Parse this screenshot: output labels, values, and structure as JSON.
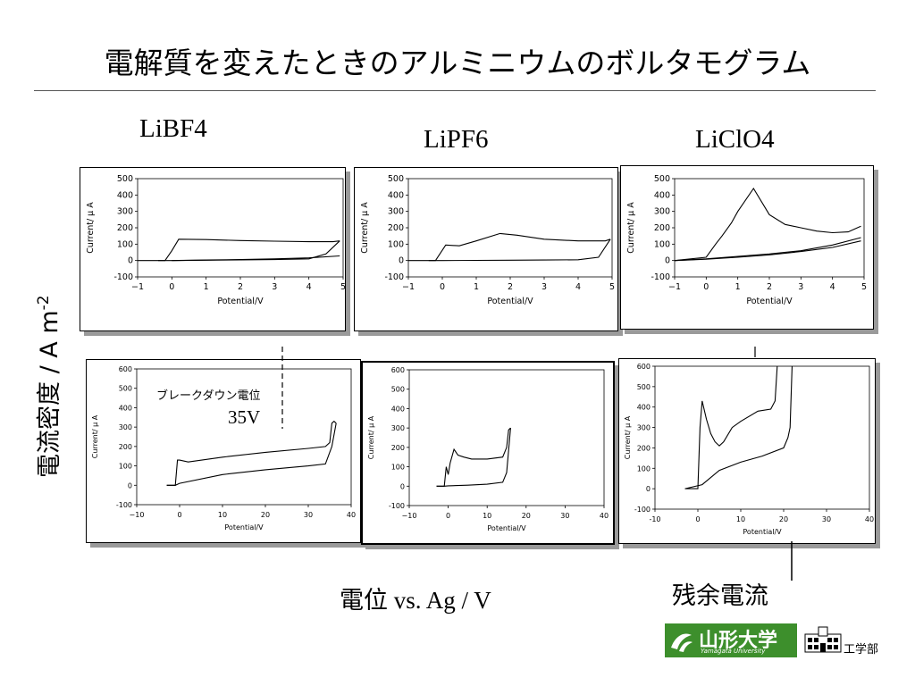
{
  "title": "電解質を変えたときのアルミニウムのボルタモグラム",
  "column_headers": [
    "LiBF4",
    "LiPF6",
    "LiClO4"
  ],
  "y_axis_label_main": "電流密度 / A m",
  "y_axis_label_sup": "-2",
  "x_axis_label_main_jp": "電位",
  "x_axis_label_main_en": " vs. Ag / V",
  "residual_label": "残余電流",
  "breakdown_label": "ブレークダウン電位",
  "breakdown_value": "35V",
  "logo_text": "山形大学",
  "logo_subtext": "Yamagata University",
  "dept_text": "工学部",
  "colors": {
    "line": "#000000",
    "shadow": "#9a9a9a",
    "logo_green": "#3d8f2c"
  },
  "chart_data": [
    {
      "type": "line",
      "panel": "LiBF4 0-5V",
      "xlabel": "Potential/V",
      "ylabel": "Current/ μ A",
      "xlim": [
        -1,
        5
      ],
      "ylim": [
        -100,
        500
      ],
      "xticks": [
        -1,
        0,
        1,
        2,
        3,
        4,
        5
      ],
      "xtick_labels": [
        "−1",
        "0",
        "1",
        "2",
        "3",
        "4",
        "5"
      ],
      "yticks": [
        -100,
        0,
        100,
        200,
        300,
        400,
        500
      ],
      "series": [
        {
          "x": [
            -1,
            -0.2,
            0,
            0.2,
            1,
            2,
            3,
            4,
            4.7,
            4.9
          ],
          "y": [
            0,
            0,
            60,
            130,
            128,
            122,
            118,
            115,
            115,
            120
          ]
        },
        {
          "x": [
            4.9,
            4.5,
            4.0,
            3.0,
            2.0,
            1.0,
            0,
            -0.4
          ],
          "y": [
            120,
            40,
            10,
            6,
            4,
            2,
            0,
            0
          ]
        },
        {
          "x": [
            0,
            1,
            2,
            3,
            4,
            4.9
          ],
          "y": [
            0,
            3,
            6,
            10,
            16,
            28
          ]
        }
      ]
    },
    {
      "type": "line",
      "panel": "LiPF6 0-5V",
      "xlabel": "Potential/V",
      "ylabel": "Current/ μ A",
      "xlim": [
        -1,
        5
      ],
      "ylim": [
        -100,
        500
      ],
      "xticks": [
        -1,
        0,
        1,
        2,
        3,
        4,
        5
      ],
      "xtick_labels": [
        "−1",
        "0",
        "1",
        "2",
        "3",
        "4",
        "5"
      ],
      "yticks": [
        -100,
        0,
        100,
        200,
        300,
        400,
        500
      ],
      "series": [
        {
          "x": [
            -1,
            -0.2,
            0.1,
            0.5,
            1.0,
            1.7,
            2.2,
            3.0,
            4.0,
            4.8,
            4.95
          ],
          "y": [
            0,
            0,
            95,
            90,
            120,
            165,
            155,
            130,
            120,
            120,
            130
          ]
        },
        {
          "x": [
            4.95,
            4.6,
            4.0,
            3.0,
            2.0,
            1.0,
            0,
            -0.4
          ],
          "y": [
            130,
            20,
            5,
            3,
            2,
            1,
            0,
            0
          ]
        }
      ]
    },
    {
      "type": "line",
      "panel": "LiClO4 0-5V",
      "xlabel": "Potential/V",
      "ylabel": "Current/ μ A",
      "xlim": [
        -1,
        5
      ],
      "ylim": [
        -100,
        500
      ],
      "xticks": [
        -1,
        0,
        1,
        2,
        3,
        4,
        5
      ],
      "xtick_labels": [
        "−1",
        "0",
        "1",
        "2",
        "3",
        "4",
        "5"
      ],
      "yticks": [
        -100,
        0,
        100,
        200,
        300,
        400,
        500
      ],
      "series": [
        {
          "x": [
            -1,
            0,
            0.3,
            0.5,
            0.8,
            1.0,
            1.5,
            2.0,
            2.5,
            3.0,
            3.5,
            4.0,
            4.5,
            4.9
          ],
          "y": [
            0,
            20,
            100,
            150,
            230,
            300,
            440,
            280,
            220,
            200,
            180,
            170,
            175,
            210
          ]
        },
        {
          "x": [
            4.9,
            4.0,
            3.0,
            2.0,
            1.0,
            0,
            -1
          ],
          "y": [
            140,
            95,
            60,
            40,
            25,
            10,
            0
          ]
        },
        {
          "x": [
            -1,
            0,
            1,
            2,
            3,
            4,
            4.9
          ],
          "y": [
            0,
            8,
            20,
            35,
            55,
            80,
            120
          ]
        }
      ]
    },
    {
      "type": "line",
      "panel": "LiBF4 0-40V",
      "xlabel": "Potential/V",
      "ylabel": "Current/ μ A",
      "xlim": [
        -10,
        40
      ],
      "ylim": [
        -100,
        600
      ],
      "xticks": [
        -10,
        0,
        10,
        20,
        30,
        40
      ],
      "xtick_labels": [
        "−10",
        "0",
        "10",
        "20",
        "30",
        "40"
      ],
      "yticks": [
        -100,
        0,
        100,
        200,
        300,
        400,
        500,
        600
      ],
      "series": [
        {
          "x": [
            -3,
            -1,
            -0.5,
            0,
            2,
            10,
            20,
            30,
            34,
            35,
            35.5,
            36,
            36.5
          ],
          "y": [
            0,
            0,
            130,
            130,
            120,
            145,
            170,
            190,
            200,
            220,
            320,
            330,
            320
          ]
        },
        {
          "x": [
            36.5,
            35.5,
            34,
            30,
            20,
            10,
            0,
            -1,
            -3
          ],
          "y": [
            320,
            200,
            110,
            100,
            80,
            55,
            10,
            0,
            0
          ]
        }
      ]
    },
    {
      "type": "line",
      "panel": "LiPF6 0-40V",
      "xlabel": "Potential/V",
      "ylabel": "Current/ μ A",
      "xlim": [
        -10,
        40
      ],
      "ylim": [
        -100,
        600
      ],
      "xticks": [
        -10,
        0,
        10,
        20,
        30,
        40
      ],
      "xtick_labels": [
        "−10",
        "0",
        "10",
        "20",
        "30",
        "40"
      ],
      "yticks": [
        -100,
        0,
        100,
        200,
        300,
        400,
        500,
        600
      ],
      "series": [
        {
          "x": [
            -3,
            -1,
            -0.5,
            0,
            0.5,
            1.5,
            2.5,
            4,
            6,
            10,
            14,
            15,
            15.5,
            16
          ],
          "y": [
            0,
            0,
            100,
            60,
            120,
            190,
            160,
            150,
            140,
            140,
            150,
            200,
            290,
            300
          ]
        },
        {
          "x": [
            16,
            15,
            14,
            10,
            5,
            0,
            -1,
            -3
          ],
          "y": [
            300,
            70,
            20,
            10,
            5,
            2,
            0,
            0
          ]
        }
      ]
    },
    {
      "type": "line",
      "panel": "LiClO4 0-40V",
      "xlabel": "Potential/V",
      "ylabel": "Current/ μ A",
      "xlim": [
        -10,
        40
      ],
      "ylim": [
        -100,
        600
      ],
      "xticks": [
        -10,
        0,
        10,
        20,
        30,
        40
      ],
      "xtick_labels": [
        "-10",
        "0",
        "10",
        "20",
        "30",
        "40"
      ],
      "yticks": [
        -100,
        0,
        100,
        200,
        300,
        400,
        500,
        600
      ],
      "series": [
        {
          "x": [
            -3,
            0,
            0.5,
            1,
            2,
            3,
            4,
            5,
            6,
            8,
            10,
            14,
            17,
            18,
            18.5,
            19
          ],
          "y": [
            0,
            0,
            300,
            430,
            340,
            270,
            230,
            210,
            230,
            300,
            330,
            380,
            390,
            430,
            600,
            620
          ]
        },
        {
          "x": [
            22,
            21.5,
            21,
            20,
            15,
            10,
            5,
            1,
            -3
          ],
          "y": [
            620,
            300,
            250,
            200,
            160,
            130,
            90,
            20,
            0
          ]
        }
      ]
    }
  ]
}
